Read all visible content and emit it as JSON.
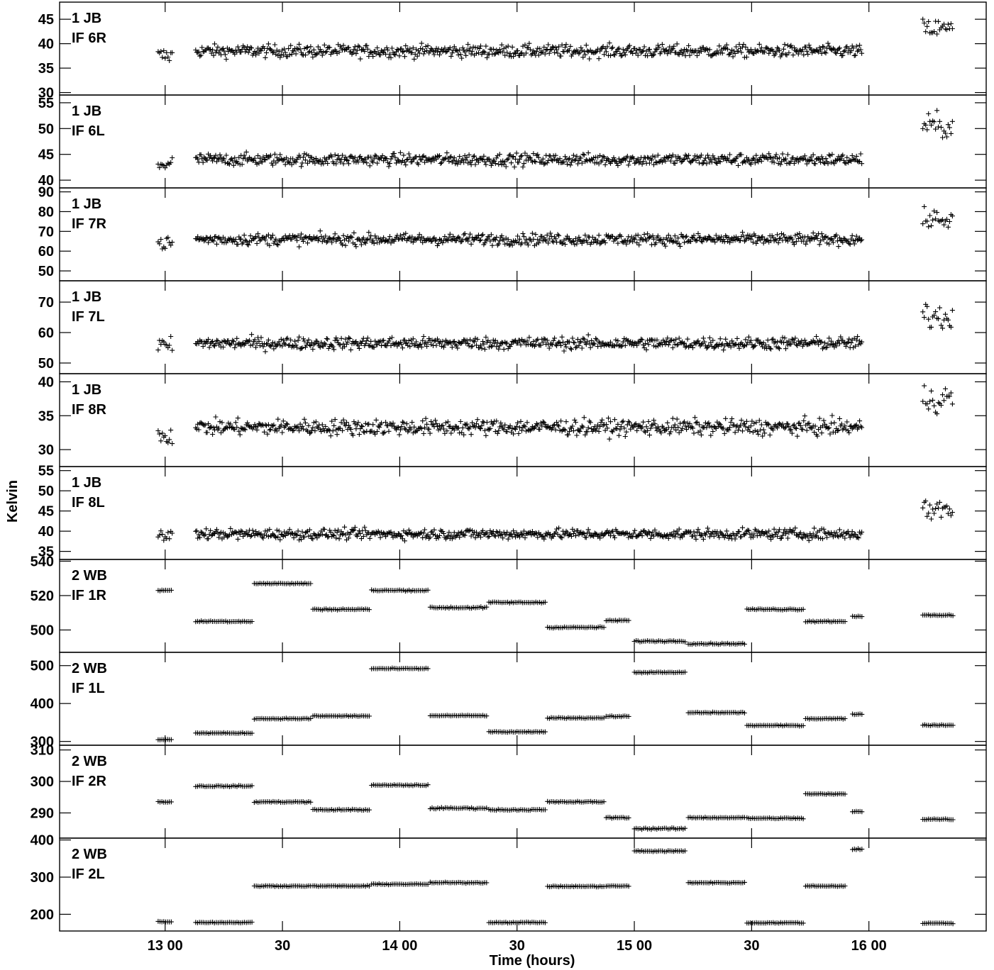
{
  "ylabel": "Kelvin",
  "xlabel": "Time (hours)",
  "x_ticks": [
    "13 00",
    "30",
    "14 00",
    "30",
    "15 00",
    "30",
    "16 00"
  ],
  "chart_data": [
    {
      "type": "scatter",
      "label1": "1 JB",
      "label2": "IF 6R",
      "ylim": [
        29.5,
        48.5
      ],
      "yticks": [
        30,
        35,
        40,
        45
      ],
      "segments": [
        {
          "t0": 12.97,
          "t1": 13.03,
          "level": 37.5,
          "noise": 3.0,
          "step": 0.006
        },
        {
          "t0": 13.13,
          "t1": 15.97,
          "level": 38.5,
          "noise": 2.2,
          "step": 0.0045
        },
        {
          "t0": 16.23,
          "t1": 16.36,
          "level": 43.0,
          "noise": 3.5,
          "step": 0.006
        }
      ]
    },
    {
      "type": "scatter",
      "label1": "1 JB",
      "label2": "IF 6L",
      "ylim": [
        38.5,
        56.5
      ],
      "yticks": [
        40,
        45,
        50,
        55
      ],
      "segments": [
        {
          "t0": 12.97,
          "t1": 13.03,
          "level": 43.2,
          "noise": 3.0,
          "step": 0.006
        },
        {
          "t0": 13.13,
          "t1": 15.97,
          "level": 44.0,
          "noise": 2.0,
          "step": 0.0045
        },
        {
          "t0": 16.23,
          "t1": 16.36,
          "level": 50.5,
          "noise": 4.0,
          "step": 0.006
        }
      ]
    },
    {
      "type": "scatter",
      "label1": "1 JB",
      "label2": "IF 7R",
      "ylim": [
        45,
        92
      ],
      "yticks": [
        50,
        60,
        70,
        80,
        90
      ],
      "segments": [
        {
          "t0": 12.97,
          "t1": 13.03,
          "level": 64.0,
          "noise": 6.0,
          "step": 0.006
        },
        {
          "t0": 13.13,
          "t1": 15.97,
          "level": 66.0,
          "noise": 5.0,
          "step": 0.0045
        },
        {
          "t0": 16.23,
          "t1": 16.36,
          "level": 76.0,
          "noise": 8.0,
          "step": 0.006
        }
      ]
    },
    {
      "type": "scatter",
      "label1": "1 JB",
      "label2": "IF 7L",
      "ylim": [
        46.5,
        77
      ],
      "yticks": [
        50,
        60,
        70
      ],
      "segments": [
        {
          "t0": 12.97,
          "t1": 13.03,
          "level": 55.5,
          "noise": 5.0,
          "step": 0.006
        },
        {
          "t0": 13.13,
          "t1": 15.97,
          "level": 56.5,
          "noise": 3.5,
          "step": 0.0045
        },
        {
          "t0": 16.23,
          "t1": 16.36,
          "level": 65.5,
          "noise": 8.0,
          "step": 0.006
        }
      ]
    },
    {
      "type": "scatter",
      "label1": "1 JB",
      "label2": "IF 8R",
      "ylim": [
        27.5,
        41.2
      ],
      "yticks": [
        30,
        35,
        40
      ],
      "segments": [
        {
          "t0": 12.97,
          "t1": 13.03,
          "level": 32.2,
          "noise": 2.5,
          "step": 0.006
        },
        {
          "t0": 13.13,
          "t1": 15.97,
          "level": 33.3,
          "noise": 2.0,
          "step": 0.0045
        },
        {
          "t0": 16.23,
          "t1": 16.36,
          "level": 37.5,
          "noise": 3.5,
          "step": 0.006
        }
      ]
    },
    {
      "type": "scatter",
      "label1": "1 JB",
      "label2": "IF 8L",
      "ylim": [
        33,
        56
      ],
      "yticks": [
        35,
        40,
        45,
        50,
        55
      ],
      "segments": [
        {
          "t0": 12.97,
          "t1": 13.03,
          "level": 38.8,
          "noise": 3.0,
          "step": 0.006
        },
        {
          "t0": 13.13,
          "t1": 15.97,
          "level": 39.3,
          "noise": 2.2,
          "step": 0.0045
        },
        {
          "t0": 16.23,
          "t1": 16.36,
          "level": 45.5,
          "noise": 4.5,
          "step": 0.006
        }
      ]
    },
    {
      "type": "scatter",
      "label1": "2 WB",
      "label2": "IF 1R",
      "ylim": [
        487,
        541
      ],
      "yticks": [
        500,
        520,
        540
      ],
      "segments": [
        {
          "t0": 12.97,
          "t1": 13.03,
          "level": 523,
          "noise": 0.6,
          "step": 0.008
        },
        {
          "t0": 13.13,
          "t1": 13.37,
          "level": 505,
          "noise": 0.6,
          "step": 0.008
        },
        {
          "t0": 13.38,
          "t1": 13.62,
          "level": 527,
          "noise": 0.6,
          "step": 0.008
        },
        {
          "t0": 13.63,
          "t1": 13.87,
          "level": 512,
          "noise": 0.6,
          "step": 0.008
        },
        {
          "t0": 13.88,
          "t1": 14.12,
          "level": 523,
          "noise": 0.6,
          "step": 0.008
        },
        {
          "t0": 14.13,
          "t1": 14.37,
          "level": 513,
          "noise": 0.8,
          "step": 0.008
        },
        {
          "t0": 14.38,
          "t1": 14.62,
          "level": 516,
          "noise": 0.6,
          "step": 0.008
        },
        {
          "t0": 14.63,
          "t1": 14.87,
          "level": 501.5,
          "noise": 0.6,
          "step": 0.008
        },
        {
          "t0": 14.88,
          "t1": 14.98,
          "level": 505.5,
          "noise": 0.6,
          "step": 0.008
        },
        {
          "t0": 15.0,
          "t1": 15.22,
          "level": 493.5,
          "noise": 0.6,
          "step": 0.008
        },
        {
          "t0": 15.23,
          "t1": 15.47,
          "level": 492,
          "noise": 0.6,
          "step": 0.008
        },
        {
          "t0": 15.48,
          "t1": 15.72,
          "level": 512,
          "noise": 0.6,
          "step": 0.008
        },
        {
          "t0": 15.73,
          "t1": 15.9,
          "level": 505,
          "noise": 0.6,
          "step": 0.008
        },
        {
          "t0": 15.93,
          "t1": 15.97,
          "level": 508,
          "noise": 0.6,
          "step": 0.008
        },
        {
          "t0": 16.23,
          "t1": 16.36,
          "level": 508.5,
          "noise": 0.6,
          "step": 0.008
        }
      ]
    },
    {
      "type": "scatter",
      "label1": "2 WB",
      "label2": "IF 1L",
      "ylim": [
        290,
        535
      ],
      "yticks": [
        300,
        400,
        500
      ],
      "segments": [
        {
          "t0": 12.97,
          "t1": 13.03,
          "level": 305,
          "noise": 2,
          "step": 0.008
        },
        {
          "t0": 13.13,
          "t1": 13.37,
          "level": 322,
          "noise": 2,
          "step": 0.008
        },
        {
          "t0": 13.38,
          "t1": 13.62,
          "level": 360,
          "noise": 2,
          "step": 0.008
        },
        {
          "t0": 13.63,
          "t1": 13.87,
          "level": 367,
          "noise": 2,
          "step": 0.008
        },
        {
          "t0": 13.88,
          "t1": 14.12,
          "level": 492,
          "noise": 2,
          "step": 0.008
        },
        {
          "t0": 14.13,
          "t1": 14.37,
          "level": 368,
          "noise": 2,
          "step": 0.008
        },
        {
          "t0": 14.38,
          "t1": 14.62,
          "level": 325,
          "noise": 2,
          "step": 0.008
        },
        {
          "t0": 14.63,
          "t1": 14.87,
          "level": 362,
          "noise": 2,
          "step": 0.008
        },
        {
          "t0": 14.88,
          "t1": 14.98,
          "level": 366,
          "noise": 2,
          "step": 0.008
        },
        {
          "t0": 15.0,
          "t1": 15.22,
          "level": 482,
          "noise": 2,
          "step": 0.008
        },
        {
          "t0": 15.23,
          "t1": 15.47,
          "level": 376,
          "noise": 2,
          "step": 0.008
        },
        {
          "t0": 15.48,
          "t1": 15.72,
          "level": 342,
          "noise": 2,
          "step": 0.008
        },
        {
          "t0": 15.73,
          "t1": 15.9,
          "level": 360,
          "noise": 2,
          "step": 0.008
        },
        {
          "t0": 15.93,
          "t1": 15.97,
          "level": 372,
          "noise": 2,
          "step": 0.008
        },
        {
          "t0": 16.23,
          "t1": 16.36,
          "level": 343,
          "noise": 2,
          "step": 0.008
        }
      ]
    },
    {
      "type": "scatter",
      "label1": "2 WB",
      "label2": "IF 2R",
      "ylim": [
        282,
        311.5
      ],
      "yticks": [
        290,
        300,
        310
      ],
      "segments": [
        {
          "t0": 12.97,
          "t1": 13.03,
          "level": 293.5,
          "noise": 0.3,
          "step": 0.008
        },
        {
          "t0": 13.13,
          "t1": 13.37,
          "level": 298.5,
          "noise": 0.3,
          "step": 0.008
        },
        {
          "t0": 13.38,
          "t1": 13.62,
          "level": 293.5,
          "noise": 0.3,
          "step": 0.008
        },
        {
          "t0": 13.63,
          "t1": 13.87,
          "level": 291,
          "noise": 0.3,
          "step": 0.008
        },
        {
          "t0": 13.88,
          "t1": 14.12,
          "level": 298.8,
          "noise": 0.3,
          "step": 0.008
        },
        {
          "t0": 14.13,
          "t1": 14.37,
          "level": 291.5,
          "noise": 0.4,
          "step": 0.008
        },
        {
          "t0": 14.38,
          "t1": 14.62,
          "level": 291,
          "noise": 0.3,
          "step": 0.008
        },
        {
          "t0": 14.63,
          "t1": 14.87,
          "level": 293.5,
          "noise": 0.3,
          "step": 0.008
        },
        {
          "t0": 14.88,
          "t1": 14.98,
          "level": 288.5,
          "noise": 0.3,
          "step": 0.008
        },
        {
          "t0": 15.0,
          "t1": 15.22,
          "level": 285,
          "noise": 0.4,
          "step": 0.008
        },
        {
          "t0": 15.23,
          "t1": 15.47,
          "level": 288.5,
          "noise": 0.3,
          "step": 0.008
        },
        {
          "t0": 15.48,
          "t1": 15.72,
          "level": 288.3,
          "noise": 0.3,
          "step": 0.008
        },
        {
          "t0": 15.73,
          "t1": 15.9,
          "level": 296,
          "noise": 0.3,
          "step": 0.008
        },
        {
          "t0": 15.93,
          "t1": 15.97,
          "level": 290.5,
          "noise": 0.3,
          "step": 0.008
        },
        {
          "t0": 16.23,
          "t1": 16.36,
          "level": 288,
          "noise": 0.3,
          "step": 0.008
        }
      ]
    },
    {
      "type": "scatter",
      "label1": "2 WB",
      "label2": "IF 2L",
      "ylim": [
        155,
        405
      ],
      "yticks": [
        200,
        300,
        400
      ],
      "segments": [
        {
          "t0": 12.97,
          "t1": 13.03,
          "level": 180,
          "noise": 2,
          "step": 0.008
        },
        {
          "t0": 13.13,
          "t1": 13.37,
          "level": 178,
          "noise": 2,
          "step": 0.008
        },
        {
          "t0": 13.38,
          "t1": 13.62,
          "level": 276,
          "noise": 2,
          "step": 0.008
        },
        {
          "t0": 13.63,
          "t1": 13.87,
          "level": 276,
          "noise": 2,
          "step": 0.008
        },
        {
          "t0": 13.88,
          "t1": 14.12,
          "level": 281,
          "noise": 2,
          "step": 0.008
        },
        {
          "t0": 14.13,
          "t1": 14.37,
          "level": 285,
          "noise": 2,
          "step": 0.008
        },
        {
          "t0": 14.38,
          "t1": 14.62,
          "level": 178,
          "noise": 2,
          "step": 0.008
        },
        {
          "t0": 14.63,
          "t1": 14.87,
          "level": 275,
          "noise": 2,
          "step": 0.008
        },
        {
          "t0": 14.88,
          "t1": 14.98,
          "level": 276,
          "noise": 2,
          "step": 0.008
        },
        {
          "t0": 15.0,
          "t1": 15.22,
          "level": 370,
          "noise": 3,
          "step": 0.008
        },
        {
          "t0": 15.23,
          "t1": 15.47,
          "level": 285,
          "noise": 2,
          "step": 0.008
        },
        {
          "t0": 15.48,
          "t1": 15.72,
          "level": 177,
          "noise": 2,
          "step": 0.008
        },
        {
          "t0": 15.73,
          "t1": 15.9,
          "level": 276,
          "noise": 2,
          "step": 0.008
        },
        {
          "t0": 15.93,
          "t1": 15.97,
          "level": 375,
          "noise": 4,
          "step": 0.008
        },
        {
          "t0": 16.23,
          "t1": 16.36,
          "level": 176,
          "noise": 2,
          "step": 0.008
        }
      ]
    }
  ]
}
